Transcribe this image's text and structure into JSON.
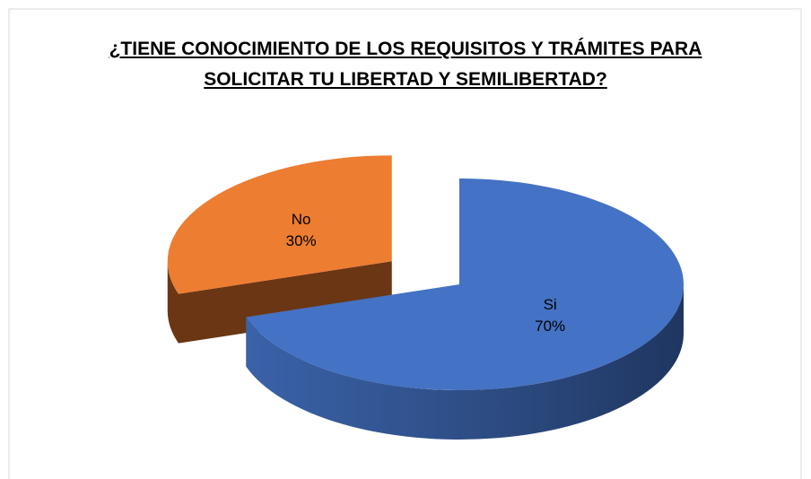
{
  "chart_data": {
    "type": "pie",
    "title": "¿TIENE CONOCIMIENTO DE LOS REQUISITOS Y TRÁMITES PARA SOLICITAR TU LIBERTAD Y SEMILIBERTAD?",
    "categories": [
      "Si",
      "No"
    ],
    "values": [
      70,
      30
    ],
    "value_labels": [
      "70%",
      "30%"
    ],
    "colors": [
      "#4472c4",
      "#ed7d31"
    ]
  }
}
